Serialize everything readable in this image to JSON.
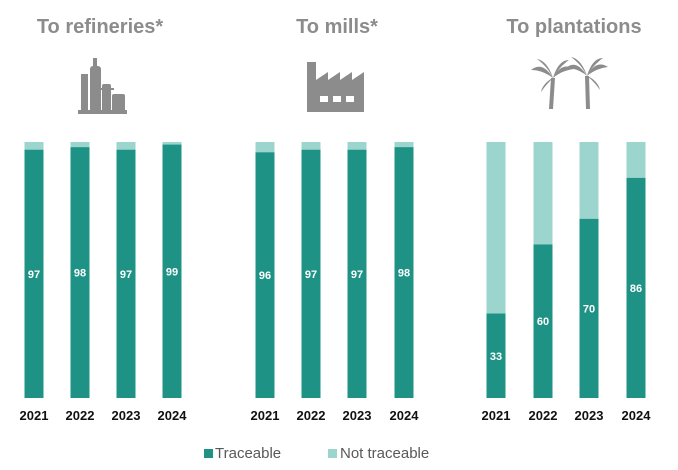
{
  "chart_data": {
    "type": "bar",
    "stacked": true,
    "units": "percent",
    "series_names": [
      "Traceable",
      "Not traceable"
    ],
    "colors": {
      "traceable": "#1e9385",
      "not_traceable": "#9bd5cd"
    },
    "legend": [
      {
        "label": "Traceable",
        "color": "#1e9385"
      },
      {
        "label": "Not traceable",
        "color": "#9bd5cd"
      }
    ],
    "ylim": [
      0,
      100
    ],
    "panels": [
      {
        "title": "To refineries*",
        "icon": "refinery-icon",
        "categories": [
          "2021",
          "2022",
          "2023",
          "2024"
        ],
        "traceable": [
          97,
          98,
          97,
          99
        ],
        "not_traceable": [
          3,
          2,
          3,
          1
        ]
      },
      {
        "title": "To mills*",
        "icon": "factory-icon",
        "categories": [
          "2021",
          "2022",
          "2023",
          "2024"
        ],
        "traceable": [
          96,
          97,
          97,
          98
        ],
        "not_traceable": [
          4,
          3,
          3,
          2
        ]
      },
      {
        "title": "To plantations",
        "icon": "palm-trees-icon",
        "categories": [
          "2021",
          "2022",
          "2023",
          "2024"
        ],
        "traceable": [
          33,
          60,
          70,
          86
        ],
        "not_traceable": [
          67,
          40,
          30,
          14
        ]
      }
    ]
  }
}
